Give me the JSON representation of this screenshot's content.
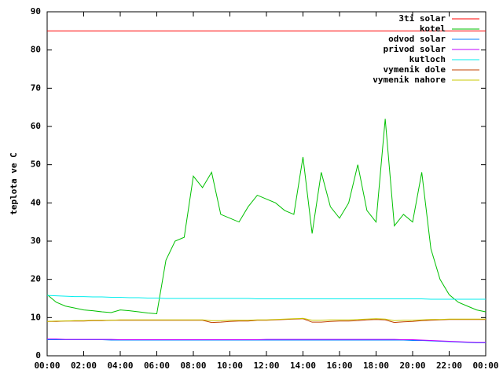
{
  "chart_data": {
    "type": "line",
    "ylabel": "teplota ve C",
    "x": [
      0,
      0.5,
      1,
      1.5,
      2,
      2.5,
      3,
      3.5,
      4,
      4.5,
      5,
      5.5,
      6,
      6.5,
      7,
      7.5,
      8,
      8.5,
      9,
      9.5,
      10,
      10.5,
      11,
      11.5,
      12,
      12.5,
      13,
      13.5,
      14,
      14.5,
      15,
      15.5,
      16,
      16.5,
      17,
      17.5,
      18,
      18.5,
      19,
      19.5,
      20,
      20.5,
      21,
      21.5,
      22,
      22.5,
      23,
      23.5,
      24
    ],
    "xlim": [
      0,
      24
    ],
    "xticks": [
      {
        "value": 0,
        "label": "00:00"
      },
      {
        "value": 2,
        "label": "02:00"
      },
      {
        "value": 4,
        "label": "04:00"
      },
      {
        "value": 6,
        "label": "06:00"
      },
      {
        "value": 8,
        "label": "08:00"
      },
      {
        "value": 10,
        "label": "10:00"
      },
      {
        "value": 12,
        "label": "12:00"
      },
      {
        "value": 14,
        "label": "14:00"
      },
      {
        "value": 16,
        "label": "16:00"
      },
      {
        "value": 18,
        "label": "18:00"
      },
      {
        "value": 20,
        "label": "20:00"
      },
      {
        "value": 22,
        "label": "22:00"
      },
      {
        "value": 24,
        "label": "00:00"
      }
    ],
    "ylim": [
      0,
      90
    ],
    "yticks": [
      0,
      10,
      20,
      30,
      40,
      50,
      60,
      70,
      80,
      90
    ],
    "legend": "top-right",
    "series": [
      {
        "name": "3ti solar",
        "color": "#ff0000",
        "values": [
          85,
          85,
          85,
          85,
          85,
          85,
          85,
          85,
          85,
          85,
          85,
          85,
          85,
          85,
          85,
          85,
          85,
          85,
          85,
          85,
          85,
          85,
          85,
          85,
          85,
          85,
          85,
          85,
          85,
          85,
          85,
          85,
          85,
          85,
          85,
          85,
          85,
          85,
          85,
          85,
          85,
          85,
          85,
          85,
          85,
          85,
          85,
          85,
          85
        ]
      },
      {
        "name": "kotel",
        "color": "#00c000",
        "values": [
          16,
          14,
          13,
          12.5,
          12,
          11.8,
          11.5,
          11.3,
          12,
          11.8,
          11.5,
          11.2,
          11,
          25,
          30,
          31,
          47,
          44,
          48,
          37,
          36,
          35,
          39,
          42,
          41,
          40,
          38,
          37,
          52,
          32,
          48,
          39,
          36,
          40,
          50,
          38,
          35,
          62,
          34,
          37,
          35,
          48,
          28,
          20,
          16,
          14,
          13,
          12,
          11.5
        ]
      },
      {
        "name": "odvod solar",
        "color": "#0080ff",
        "values": [
          4.2,
          4.2,
          4.2,
          4.2,
          4.2,
          4.2,
          4.2,
          4.1,
          4.1,
          4.1,
          4.1,
          4.1,
          4.1,
          4.1,
          4.1,
          4.1,
          4.1,
          4.1,
          4.1,
          4.1,
          4.1,
          4.1,
          4.1,
          4.1,
          4.1,
          4.1,
          4.1,
          4.1,
          4.1,
          4.1,
          4.1,
          4.1,
          4.1,
          4.1,
          4.1,
          4.1,
          4.1,
          4.1,
          4.1,
          4.1,
          4.0,
          4.0,
          3.9,
          3.8,
          3.7,
          3.6,
          3.5,
          3.4,
          3.4
        ]
      },
      {
        "name": "privod solar",
        "color": "#c000ff",
        "values": [
          4.4,
          4.4,
          4.3,
          4.3,
          4.3,
          4.3,
          4.3,
          4.3,
          4.2,
          4.2,
          4.2,
          4.2,
          4.2,
          4.2,
          4.2,
          4.2,
          4.2,
          4.2,
          4.2,
          4.2,
          4.2,
          4.2,
          4.2,
          4.2,
          4.3,
          4.3,
          4.3,
          4.3,
          4.3,
          4.3,
          4.3,
          4.3,
          4.3,
          4.3,
          4.3,
          4.3,
          4.3,
          4.3,
          4.3,
          4.2,
          4.2,
          4.1,
          4.0,
          3.9,
          3.8,
          3.7,
          3.6,
          3.5,
          3.5
        ]
      },
      {
        "name": "kutloch",
        "color": "#00eeee",
        "values": [
          15.8,
          15.7,
          15.6,
          15.5,
          15.5,
          15.4,
          15.4,
          15.3,
          15.3,
          15.2,
          15.2,
          15.1,
          15.1,
          15,
          15,
          15,
          15,
          15,
          15,
          15,
          15,
          15,
          15,
          14.9,
          14.9,
          14.9,
          14.9,
          14.9,
          14.9,
          14.9,
          14.9,
          14.9,
          14.9,
          14.9,
          14.9,
          14.9,
          14.9,
          14.9,
          14.9,
          14.9,
          14.9,
          14.9,
          14.8,
          14.8,
          14.8,
          14.8,
          14.8,
          14.8,
          14.8
        ]
      },
      {
        "name": "vymenik dole",
        "color": "#c04000",
        "values": [
          9,
          9,
          9.1,
          9.1,
          9.1,
          9.2,
          9.2,
          9.3,
          9.3,
          9.3,
          9.3,
          9.3,
          9.3,
          9.3,
          9.3,
          9.3,
          9.3,
          9.3,
          8.7,
          8.8,
          9,
          9.1,
          9.1,
          9.3,
          9.3,
          9.4,
          9.5,
          9.6,
          9.7,
          8.8,
          8.8,
          9,
          9.1,
          9.1,
          9.2,
          9.4,
          9.5,
          9.4,
          8.7,
          8.9,
          9,
          9.2,
          9.3,
          9.4,
          9.5,
          9.5,
          9.5,
          9.5,
          9.5
        ]
      },
      {
        "name": "vymenik nahore",
        "color": "#c8c800",
        "values": [
          9,
          9.1,
          9.1,
          9.2,
          9.2,
          9.3,
          9.3,
          9.3,
          9.4,
          9.4,
          9.4,
          9.4,
          9.4,
          9.4,
          9.4,
          9.4,
          9.4,
          9.4,
          9.2,
          9.2,
          9.3,
          9.3,
          9.3,
          9.4,
          9.4,
          9.5,
          9.6,
          9.7,
          9.8,
          9.3,
          9.3,
          9.4,
          9.4,
          9.4,
          9.5,
          9.6,
          9.7,
          9.6,
          9.2,
          9.3,
          9.3,
          9.4,
          9.5,
          9.5,
          9.6,
          9.6,
          9.6,
          9.6,
          9.6
        ]
      }
    ]
  }
}
